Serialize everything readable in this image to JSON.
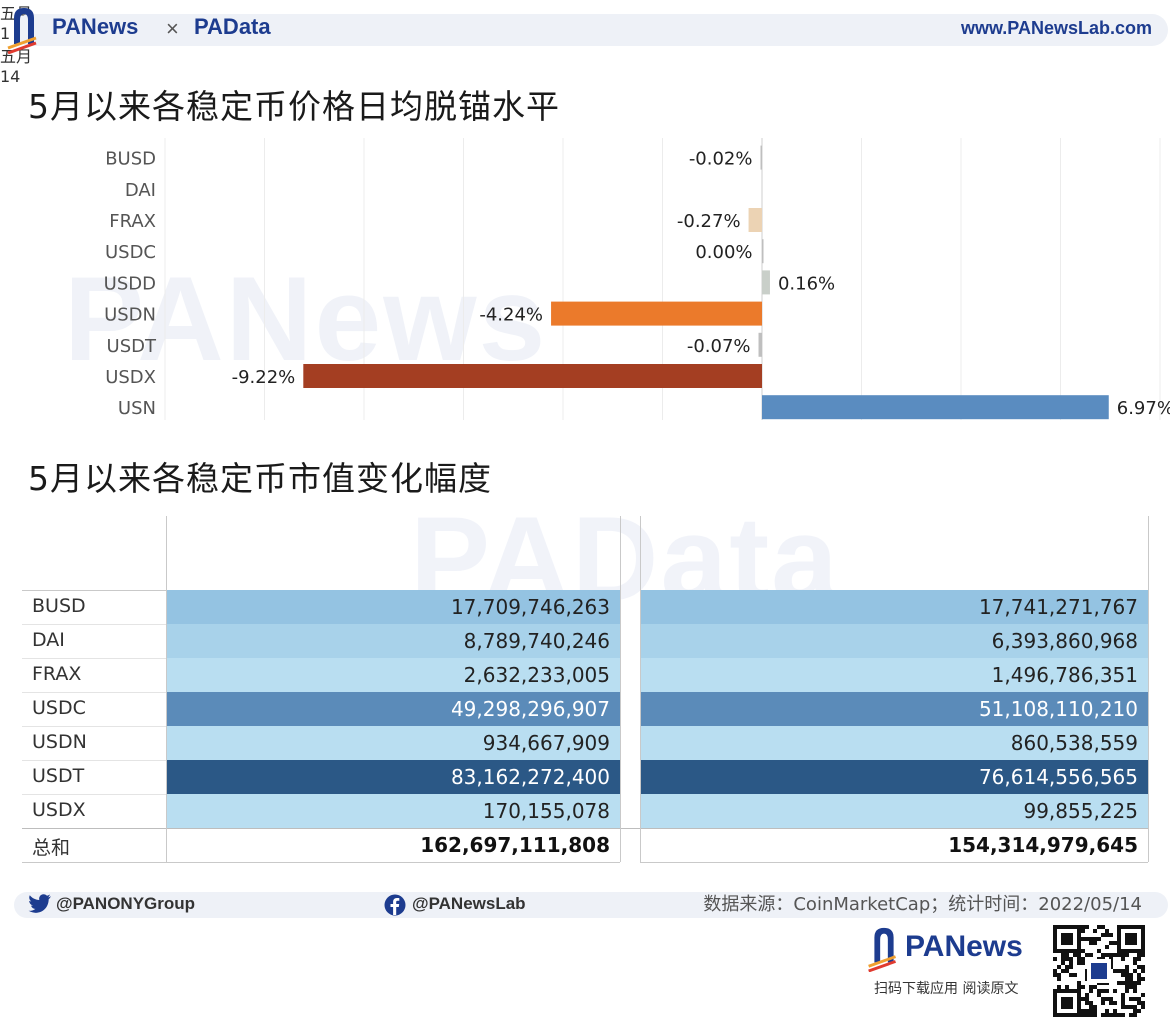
{
  "header": {
    "brand_left": "PANews",
    "brand_sep": "×",
    "brand_right": "PAData",
    "site": "www.PANewsLab.com"
  },
  "watermarks": {
    "top": "PANews",
    "bottom": "PAData"
  },
  "chart_title": "5月以来各稳定币价格日均脱锚水平",
  "table_title": "5月以来各稳定币市值变化幅度",
  "chart_data": [
    {
      "type": "bar",
      "orientation": "horizontal",
      "title": "5月以来各稳定币价格日均脱锚水平",
      "categories": [
        "BUSD",
        "DAI",
        "FRAX",
        "USDC",
        "USDD",
        "USDN",
        "USDT",
        "USDX",
        "USN"
      ],
      "values": [
        -0.02,
        null,
        -0.27,
        0.0,
        0.16,
        -4.24,
        -0.07,
        -9.22,
        6.97
      ],
      "labels": [
        "-0.02%",
        "",
        "-0.27%",
        "0.00%",
        "0.16%",
        "-4.24%",
        "-0.07%",
        "-9.22%",
        "6.97%"
      ],
      "colors": [
        "#bfbfbf",
        "#bfbfbf",
        "#ecd3b4",
        "#bfbfbf",
        "#c9cfc9",
        "#eb7a2b",
        "#bfbfbf",
        "#a43e22",
        "#5a8cc0"
      ],
      "xlim": [
        -12,
        8
      ],
      "unit": "%",
      "grid": true
    },
    {
      "type": "table",
      "title": "5月以来各稳定币市值变化幅度",
      "columns": [
        {
          "month": "五月",
          "day": "1"
        },
        {
          "month": "五月",
          "day": "14"
        }
      ],
      "rows": [
        "BUSD",
        "DAI",
        "FRAX",
        "USDC",
        "USDN",
        "USDT",
        "USDX"
      ],
      "values_day1": [
        17709746263,
        8789740246,
        2632233005,
        49298296907,
        934667909,
        83162272400,
        170155078
      ],
      "values_day14": [
        17741271767,
        6393860968,
        1496786351,
        51108110210,
        860538559,
        76614556565,
        99855225
      ],
      "display_day1": [
        "17,709,746,263",
        "8,789,740,246",
        "2,632,233,005",
        "49,298,296,907",
        "934,667,909",
        "83,162,272,400",
        "170,155,078"
      ],
      "display_day14": [
        "17,741,271,767",
        "6,393,860,968",
        "1,496,786,351",
        "51,108,110,210",
        "860,538,559",
        "76,614,556,565",
        "99,855,225"
      ],
      "total_label": "总和",
      "total_day1": "162,697,111,808",
      "total_day14": "154,314,979,645"
    }
  ],
  "footer": {
    "twitter": "@PANONYGroup",
    "facebook": "@PANewsLab",
    "source": "数据来源：CoinMarketCap；统计时间：2022/05/14",
    "app_name": "PANews",
    "app_tagline": "扫码下载应用  阅读原文"
  }
}
